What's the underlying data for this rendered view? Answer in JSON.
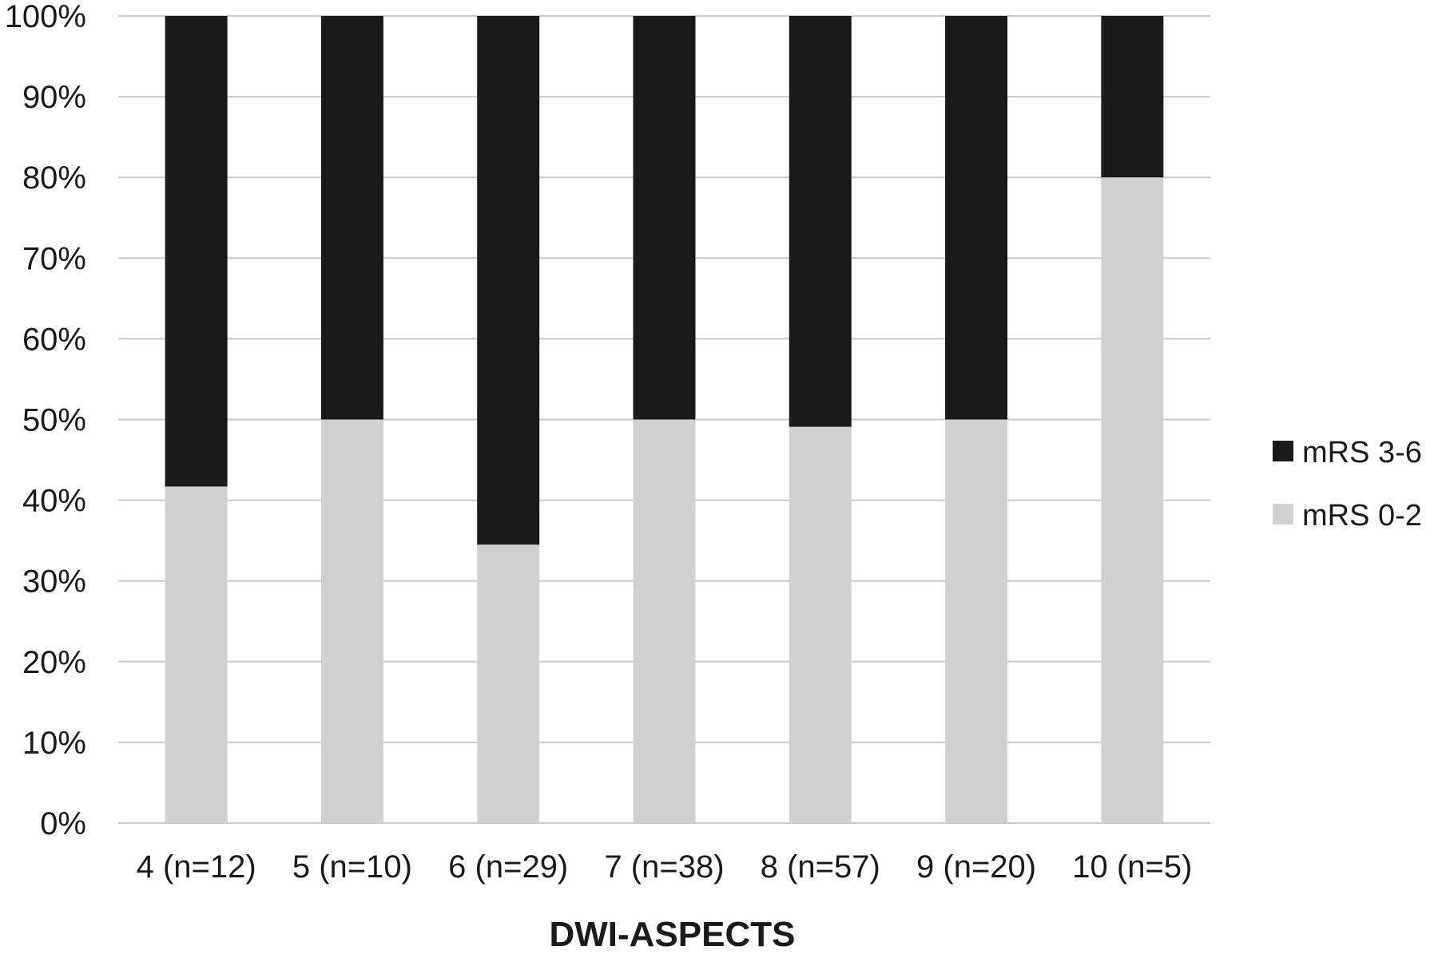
{
  "chart_data": {
    "type": "bar",
    "stacked": true,
    "categories": [
      "4 (n=12)",
      "5 (n=10)",
      "6 (n=29)",
      "7 (n=38)",
      "8 (n=57)",
      "9 (n=20)",
      "10 (n=5)"
    ],
    "series": [
      {
        "name": "mRS 0-2",
        "color": "#d0d0d0",
        "values": [
          41.7,
          50.0,
          34.5,
          50.0,
          49.1,
          50.0,
          80.0
        ]
      },
      {
        "name": "mRS 3-6",
        "color": "#1a1a1a",
        "values": [
          58.3,
          50.0,
          65.5,
          50.0,
          50.9,
          50.0,
          20.0
        ]
      }
    ],
    "legend_order": [
      "mRS 3-6",
      "mRS 0-2"
    ],
    "title": "",
    "xlabel": "DWI-ASPECTS",
    "ylabel": "",
    "ylim": [
      0,
      100
    ],
    "yticks": [
      "0%",
      "10%",
      "20%",
      "30%",
      "40%",
      "50%",
      "60%",
      "70%",
      "80%",
      "90%",
      "100%"
    ],
    "grid": true,
    "legend_position": "right"
  }
}
